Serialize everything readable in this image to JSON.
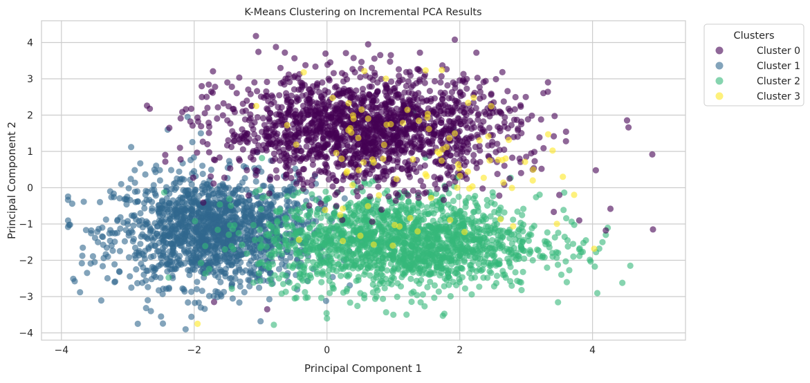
{
  "chart_data": {
    "type": "scatter",
    "title": "K-Means Clustering on Incremental PCA Results",
    "xlabel": "Principal Component 1",
    "ylabel": "Principal Component 2",
    "xlim": [
      -4.3,
      5.4
    ],
    "ylim": [
      -4.2,
      4.6
    ],
    "xticks": [
      -4,
      -2,
      0,
      2,
      4
    ],
    "yticks": [
      -4,
      -3,
      -2,
      -1,
      0,
      1,
      2,
      3,
      4
    ],
    "xtick_labels": [
      "−4",
      "−2",
      "0",
      "2",
      "4"
    ],
    "ytick_labels": [
      "−4",
      "−3",
      "−2",
      "−1",
      "0",
      "1",
      "2",
      "3",
      "4"
    ],
    "grid": true,
    "legend": {
      "title": "Clusters",
      "placement": "outside-right-top"
    },
    "series": [
      {
        "name": "Cluster 0",
        "color": "#440154",
        "opacity": 0.6,
        "center": [
          0.6,
          1.6
        ],
        "spread": [
          1.1,
          0.75
        ],
        "outliers": [
          [
            -1.07,
            4.18
          ],
          [
            0.62,
            3.95
          ],
          [
            1.4,
            3.72
          ],
          [
            2.25,
            3.72
          ],
          [
            -1.5,
            2.9
          ],
          [
            -0.7,
            3.3
          ],
          [
            -1.8,
            2.2
          ],
          [
            3.6,
            1.28
          ],
          [
            4.05,
            0.48
          ],
          [
            4.27,
            -0.58
          ],
          [
            4.2,
            -1.18
          ],
          [
            4.91,
            -1.15
          ],
          [
            3.8,
            -0.9
          ],
          [
            3.1,
            0.5
          ],
          [
            3.5,
            -0.2
          ],
          [
            2.6,
            2.1
          ],
          [
            -1.7,
            -3.15
          ],
          [
            -0.9,
            -3.35
          ],
          [
            1.9,
            2.9
          ],
          [
            2.9,
            0.8
          ]
        ]
      },
      {
        "name": "Cluster 1",
        "color": "#31688e",
        "opacity": 0.6,
        "center": [
          -1.7,
          -1.2
        ],
        "spread": [
          0.75,
          0.75
        ],
        "outliers": [
          [
            -3.8,
            -2.58
          ],
          [
            -3.72,
            -2.88
          ],
          [
            -3.55,
            -1.18
          ],
          [
            -3.5,
            -2.05
          ],
          [
            -2.85,
            -3.75
          ],
          [
            -2.5,
            -3.55
          ],
          [
            -2.4,
            1.6
          ],
          [
            -2.95,
            1.12
          ],
          [
            -3.1,
            0.1
          ],
          [
            -2.1,
            1.95
          ],
          [
            -1.0,
            -3.68
          ],
          [
            -3.3,
            -1.9
          ],
          [
            -3.45,
            -1.5
          ],
          [
            -3.2,
            -2.6
          ],
          [
            -2.7,
            -3.1
          ],
          [
            -1.9,
            -3.3
          ],
          [
            -2.6,
            0.5
          ],
          [
            -1.9,
            1.5
          ]
        ]
      },
      {
        "name": "Cluster 2",
        "color": "#35b779",
        "opacity": 0.6,
        "center": [
          1.1,
          -1.5
        ],
        "spread": [
          1.05,
          0.65
        ],
        "outliers": [
          [
            0.0,
            -3.6
          ],
          [
            -0.8,
            -3.78
          ],
          [
            1.0,
            -3.5
          ],
          [
            4.15,
            -1.5
          ],
          [
            4.2,
            -1.3
          ],
          [
            3.8,
            -1.7
          ],
          [
            3.4,
            -1.9
          ],
          [
            2.6,
            -2.1
          ],
          [
            3.9,
            -1.45
          ],
          [
            2.0,
            -2.6
          ],
          [
            1.9,
            1.6
          ],
          [
            1.3,
            2.1
          ],
          [
            3.1,
            -2.0
          ]
        ]
      },
      {
        "name": "Cluster 3",
        "color": "#fde725",
        "opacity": 0.6,
        "center": [
          1.4,
          0.6
        ],
        "spread": [
          1.1,
          1.1
        ],
        "outliers": [
          [
            -1.95,
            -3.75
          ],
          [
            -0.35,
            3.18
          ],
          [
            0.2,
            -0.75
          ],
          [
            1.8,
            1.12
          ],
          [
            2.45,
            0.75
          ],
          [
            3.1,
            0.2
          ],
          [
            0.4,
            1.9
          ]
        ]
      }
    ]
  }
}
